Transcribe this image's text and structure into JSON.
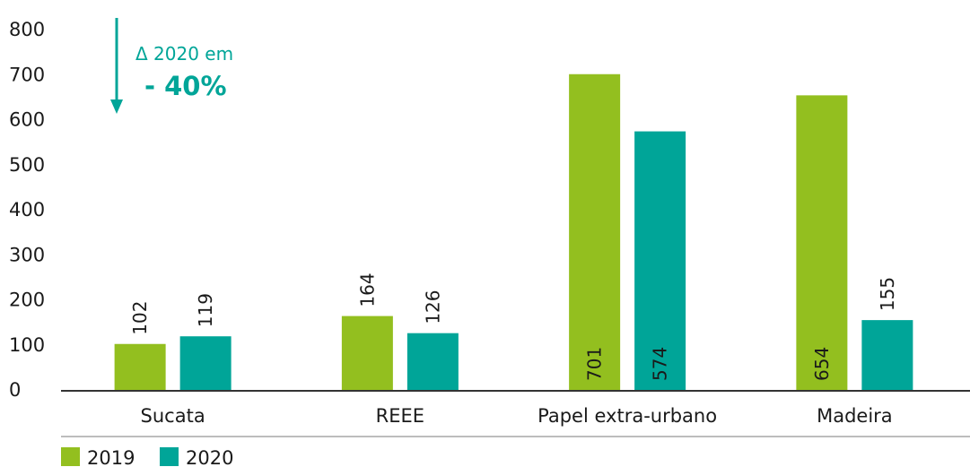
{
  "chart_data": {
    "type": "bar",
    "categories": [
      "Sucata",
      "REEE",
      "Papel extra-urbano",
      "Madeira"
    ],
    "series": [
      {
        "name": "2019",
        "values": [
          102,
          164,
          701,
          654
        ],
        "color": "#93bf1f"
      },
      {
        "name": "2020",
        "values": [
          119,
          126,
          574,
          155
        ],
        "color": "#00a598"
      }
    ],
    "ylim": [
      0,
      800
    ],
    "yticks": [
      0,
      100,
      200,
      300,
      400,
      500,
      600,
      700,
      800
    ],
    "grid": false,
    "legend_position": "bottom-left",
    "annotation": {
      "line1": "Δ 2020 em",
      "line2": "- 40%",
      "color": "#00a598",
      "arrow": "down"
    }
  }
}
